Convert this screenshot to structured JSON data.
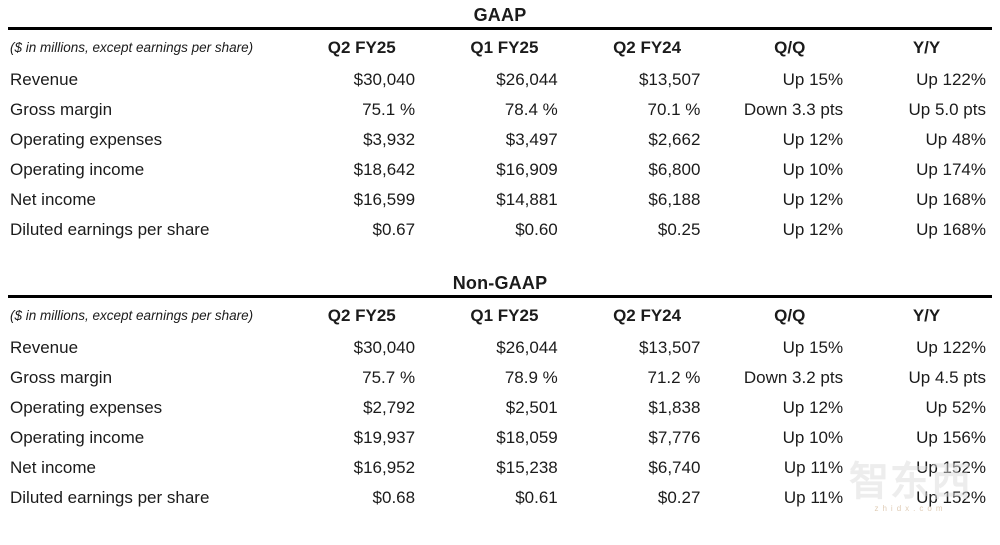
{
  "page": {
    "background": "#ffffff",
    "text_color": "#1b1b1b",
    "rule_color": "#000000"
  },
  "tables": [
    {
      "title": "GAAP",
      "note": "($ in millions, except earnings per share)",
      "columns": [
        "Q2 FY25",
        "Q1 FY25",
        "Q2 FY24",
        "Q/Q",
        "Y/Y"
      ],
      "rows": [
        {
          "label": "Revenue",
          "values": [
            "$30,040",
            "$26,044",
            "$13,507",
            "Up 15%",
            "Up 122%"
          ]
        },
        {
          "label": "Gross margin",
          "values": [
            "75.1 %",
            "78.4 %",
            "70.1 %",
            "Down 3.3 pts",
            "Up 5.0 pts"
          ]
        },
        {
          "label": "Operating expenses",
          "values": [
            "$3,932",
            "$3,497",
            "$2,662",
            "Up 12%",
            "Up 48%"
          ]
        },
        {
          "label": "Operating income",
          "values": [
            "$18,642",
            "$16,909",
            "$6,800",
            "Up 10%",
            "Up 174%"
          ]
        },
        {
          "label": "Net income",
          "values": [
            "$16,599",
            "$14,881",
            "$6,188",
            "Up 12%",
            "Up 168%"
          ]
        },
        {
          "label": "Diluted earnings per share",
          "values": [
            "$0.67",
            "$0.60",
            "$0.25",
            "Up 12%",
            "Up 168%"
          ]
        }
      ]
    },
    {
      "title": "Non-GAAP",
      "note": "($ in millions, except earnings per share)",
      "columns": [
        "Q2 FY25",
        "Q1 FY25",
        "Q2 FY24",
        "Q/Q",
        "Y/Y"
      ],
      "rows": [
        {
          "label": "Revenue",
          "values": [
            "$30,040",
            "$26,044",
            "$13,507",
            "Up 15%",
            "Up 122%"
          ]
        },
        {
          "label": "Gross margin",
          "values": [
            "75.7 %",
            "78.9 %",
            "71.2 %",
            "Down 3.2 pts",
            "Up 4.5 pts"
          ]
        },
        {
          "label": "Operating expenses",
          "values": [
            "$2,792",
            "$2,501",
            "$1,838",
            "Up 12%",
            "Up 52%"
          ]
        },
        {
          "label": "Operating income",
          "values": [
            "$19,937",
            "$18,059",
            "$7,776",
            "Up 10%",
            "Up 156%"
          ]
        },
        {
          "label": "Net income",
          "values": [
            "$16,952",
            "$15,238",
            "$6,740",
            "Up 11%",
            "Up 152%"
          ]
        },
        {
          "label": "Diluted earnings per share",
          "values": [
            "$0.68",
            "$0.61",
            "$0.27",
            "Up 11%",
            "Up 152%"
          ]
        }
      ]
    }
  ],
  "watermark": {
    "text": "智东西",
    "subtext": "zhidx.com"
  }
}
